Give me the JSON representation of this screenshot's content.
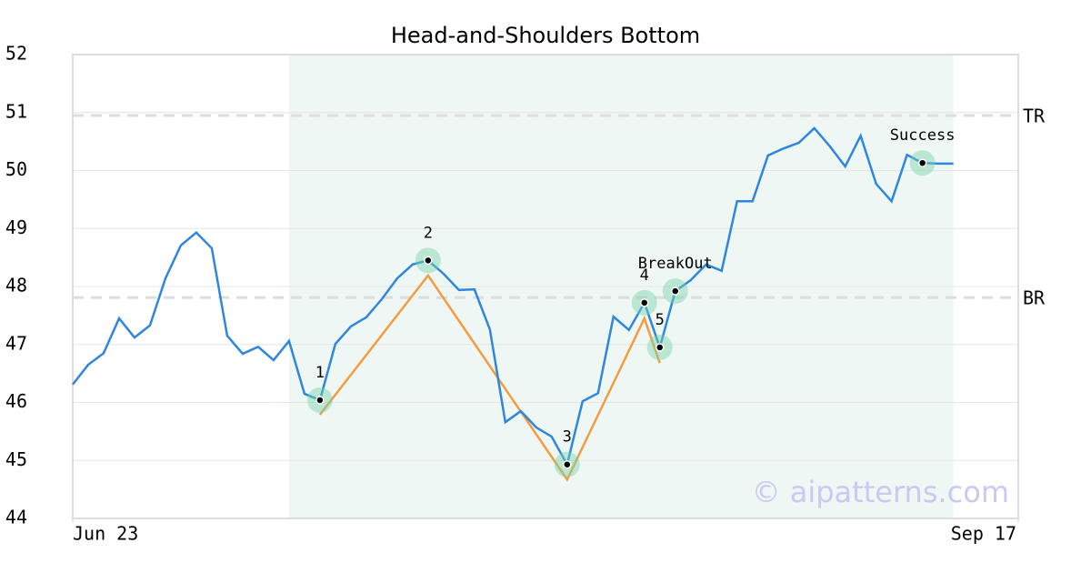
{
  "chart_data": {
    "type": "line",
    "title": "Head-and-Shoulders Bottom",
    "x": [
      0,
      1,
      2,
      3,
      4,
      5,
      6,
      7,
      8,
      9,
      10,
      11,
      12,
      13,
      14,
      15,
      16,
      17,
      18,
      19,
      20,
      21,
      22,
      23,
      24,
      25,
      26,
      27,
      28,
      29,
      30,
      31,
      32,
      33,
      34,
      35,
      36,
      37,
      38,
      39,
      40,
      41,
      42,
      43,
      44,
      45,
      46,
      47,
      48,
      49,
      50,
      51,
      52,
      53,
      54,
      55,
      56,
      57
    ],
    "series": [
      {
        "color": "#2e86de",
        "values": [
          46.31,
          46.65,
          46.85,
          47.45,
          47.12,
          47.33,
          48.14,
          48.71,
          48.93,
          48.66,
          47.15,
          46.84,
          46.96,
          46.73,
          47.06,
          46.15,
          46.04,
          47.01,
          47.31,
          47.47,
          47.78,
          48.14,
          48.38,
          48.45,
          48.22,
          47.94,
          47.95,
          47.26,
          45.66,
          45.85,
          45.57,
          45.41,
          44.93,
          46.02,
          46.16,
          47.48,
          47.25,
          47.72,
          46.95,
          47.92,
          48.11,
          48.38,
          48.27,
          49.47,
          49.47,
          50.26,
          50.38,
          50.48,
          50.73,
          50.42,
          50.07,
          50.6,
          49.77,
          49.47,
          50.27,
          50.13,
          50.12,
          50.12
        ]
      }
    ],
    "pattern": {
      "color": "#f39c40",
      "x": [
        16,
        23,
        32,
        37,
        38
      ],
      "values": [
        45.79,
        48.19,
        44.67,
        47.45,
        46.68
      ]
    },
    "points": [
      {
        "label": "1",
        "x": 16,
        "value": 46.04
      },
      {
        "label": "2",
        "x": 23,
        "value": 48.45
      },
      {
        "label": "3",
        "x": 32,
        "value": 44.93
      },
      {
        "label": "4",
        "x": 37,
        "value": 47.72
      },
      {
        "label": "5",
        "x": 38,
        "value": 46.95
      },
      {
        "label": "BreakOut",
        "x": 39,
        "value": 47.92
      },
      {
        "label": "Success",
        "x": 55,
        "value": 50.13
      }
    ],
    "levels": [
      {
        "label": "TR",
        "value": 50.95
      },
      {
        "label": "BR",
        "value": 47.81
      }
    ],
    "highlight_range": [
      14,
      57
    ],
    "xlim": [
      0,
      61.2
    ],
    "xticks": [
      {
        "value": 0,
        "label": "Jun 23"
      },
      {
        "value": 61.2,
        "label": "Sep 17"
      }
    ],
    "ylim": [
      44,
      52
    ],
    "yticks": [
      44,
      45,
      46,
      47,
      48,
      49,
      50,
      51,
      52
    ],
    "grid": true,
    "watermark": "© aipatterns.com"
  }
}
